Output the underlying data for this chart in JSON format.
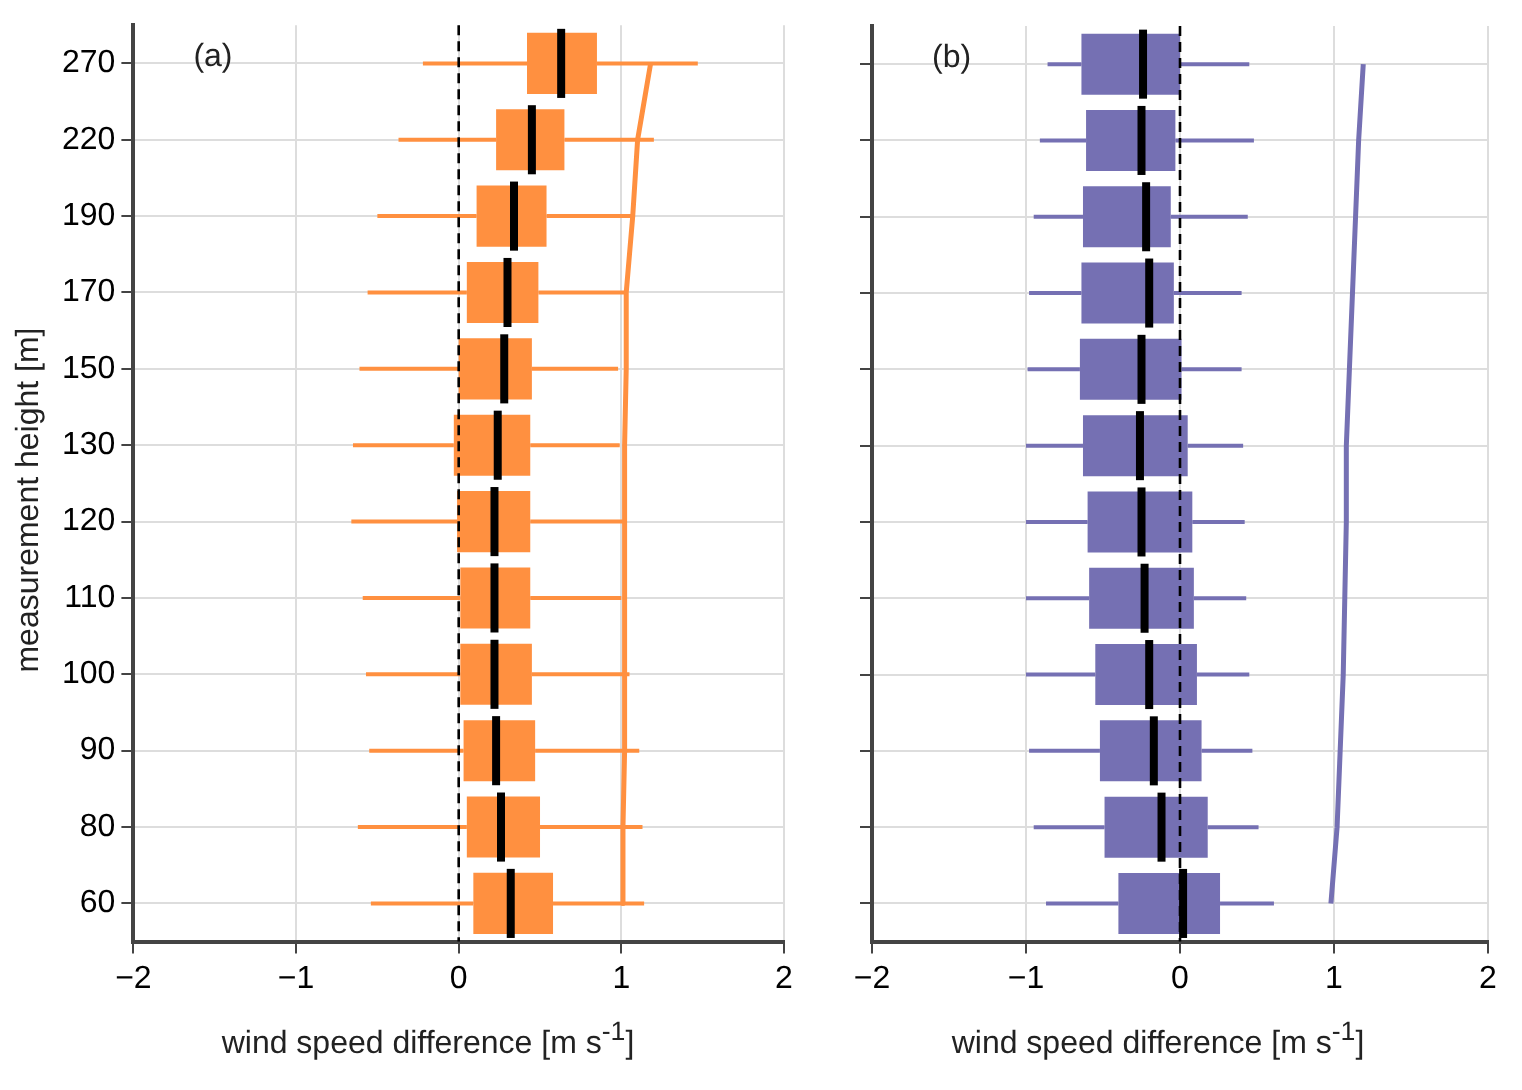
{
  "chart_data": [
    {
      "type": "box",
      "orientation": "horizontal",
      "ylabel": "measurement height [m]",
      "xlabel": "wind speed difference [m s$^{-1}$]",
      "categories": [
        "270",
        "220",
        "190",
        "170",
        "150",
        "130",
        "120",
        "110",
        "100",
        "90",
        "80",
        "60"
      ],
      "xlim": [
        -2,
        2
      ],
      "xticks": [
        -2,
        -1,
        0,
        1,
        2
      ],
      "grid": true,
      "ref_lines": [
        {
          "axis": "x",
          "value": 0,
          "color": "#000000",
          "line_style": "dashed"
        }
      ],
      "annotations": [
        "(a)"
      ],
      "series": [
        {
          "type": "box",
          "color": "#ff9040",
          "boxes": [
            {
              "low": -0.22,
              "q1": 0.42,
              "median": 0.63,
              "q3": 0.85,
              "high": 1.47
            },
            {
              "low": -0.37,
              "q1": 0.23,
              "median": 0.45,
              "q3": 0.65,
              "high": 1.2
            },
            {
              "low": -0.5,
              "q1": 0.11,
              "median": 0.34,
              "q3": 0.54,
              "high": 1.07
            },
            {
              "low": -0.56,
              "q1": 0.05,
              "median": 0.3,
              "q3": 0.49,
              "high": 1.03
            },
            {
              "low": -0.61,
              "q1": 0.0,
              "median": 0.28,
              "q3": 0.45,
              "high": 0.98
            },
            {
              "low": -0.65,
              "q1": -0.03,
              "median": 0.24,
              "q3": 0.44,
              "high": 0.99
            },
            {
              "low": -0.66,
              "q1": -0.01,
              "median": 0.22,
              "q3": 0.44,
              "high": 1.01
            },
            {
              "low": -0.59,
              "q1": 0.01,
              "median": 0.22,
              "q3": 0.44,
              "high": 1.0
            },
            {
              "low": -0.57,
              "q1": 0.01,
              "median": 0.22,
              "q3": 0.45,
              "high": 1.05
            },
            {
              "low": -0.55,
              "q1": 0.03,
              "median": 0.23,
              "q3": 0.47,
              "high": 1.11
            },
            {
              "low": -0.62,
              "q1": 0.05,
              "median": 0.26,
              "q3": 0.5,
              "high": 1.13
            },
            {
              "low": -0.54,
              "q1": 0.09,
              "median": 0.32,
              "q3": 0.58,
              "high": 1.14
            }
          ]
        },
        {
          "type": "line",
          "color": "#ff9040",
          "values": [
            1.18,
            1.1,
            1.07,
            1.03,
            1.03,
            1.02,
            1.02,
            1.02,
            1.02,
            1.02,
            1.01,
            1.01
          ]
        }
      ]
    },
    {
      "type": "box",
      "orientation": "horizontal",
      "xlabel": "wind speed difference [m s$^{-1}$]",
      "tick_labels": "x",
      "categories": [
        "270",
        "220",
        "190",
        "170",
        "150",
        "130",
        "120",
        "110",
        "100",
        "90",
        "80",
        "60"
      ],
      "xlim": [
        -2,
        2
      ],
      "xticks": [
        -2,
        -1,
        0,
        1,
        2
      ],
      "grid": true,
      "ref_lines": [
        {
          "axis": "x",
          "value": 0,
          "color": "#000000",
          "line_style": "dashed"
        }
      ],
      "annotations": [
        "(b)"
      ],
      "series": [
        {
          "type": "box",
          "color": "#7570b3",
          "boxes": [
            {
              "low": -0.86,
              "q1": -0.64,
              "median": -0.24,
              "q3": 0.0,
              "high": 0.45
            },
            {
              "low": -0.91,
              "q1": -0.61,
              "median": -0.25,
              "q3": -0.03,
              "high": 0.48
            },
            {
              "low": -0.95,
              "q1": -0.63,
              "median": -0.22,
              "q3": -0.06,
              "high": 0.44
            },
            {
              "low": -0.98,
              "q1": -0.64,
              "median": -0.2,
              "q3": -0.04,
              "high": 0.4
            },
            {
              "low": -0.99,
              "q1": -0.65,
              "median": -0.25,
              "q3": 0.01,
              "high": 0.4
            },
            {
              "low": -1.0,
              "q1": -0.63,
              "median": -0.26,
              "q3": 0.05,
              "high": 0.41
            },
            {
              "low": -1.0,
              "q1": -0.6,
              "median": -0.25,
              "q3": 0.08,
              "high": 0.42
            },
            {
              "low": -1.0,
              "q1": -0.59,
              "median": -0.23,
              "q3": 0.09,
              "high": 0.43
            },
            {
              "low": -1.0,
              "q1": -0.55,
              "median": -0.2,
              "q3": 0.11,
              "high": 0.45
            },
            {
              "low": -0.98,
              "q1": -0.52,
              "median": -0.17,
              "q3": 0.14,
              "high": 0.47
            },
            {
              "low": -0.95,
              "q1": -0.49,
              "median": -0.12,
              "q3": 0.18,
              "high": 0.51
            },
            {
              "low": -0.87,
              "q1": -0.4,
              "median": 0.02,
              "q3": 0.26,
              "high": 0.61
            }
          ]
        },
        {
          "type": "line",
          "color": "#7570b3",
          "values": [
            1.19,
            1.16,
            1.14,
            1.12,
            1.1,
            1.08,
            1.08,
            1.07,
            1.06,
            1.04,
            1.02,
            0.98
          ]
        }
      ]
    }
  ]
}
